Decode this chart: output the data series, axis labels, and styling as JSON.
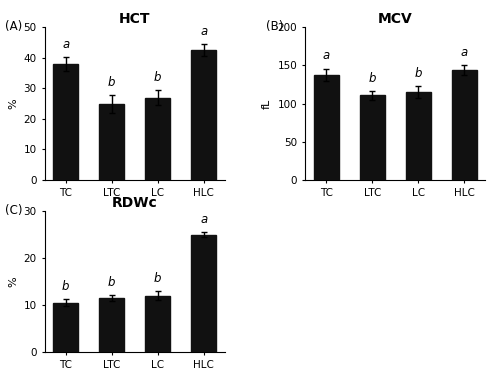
{
  "categories": [
    "TC",
    "LTC",
    "LC",
    "HLC"
  ],
  "hct": {
    "title": "HCT",
    "ylabel": "%",
    "ylim": [
      0,
      50
    ],
    "yticks": [
      0,
      10,
      20,
      30,
      40,
      50
    ],
    "values": [
      38.0,
      24.8,
      27.0,
      42.5
    ],
    "errors": [
      2.2,
      3.0,
      2.5,
      2.0
    ],
    "letters": [
      "a",
      "b",
      "b",
      "a"
    ],
    "panel_label": "(A)"
  },
  "mcv": {
    "title": "MCV",
    "ylabel": "fL",
    "ylim": [
      0,
      200
    ],
    "yticks": [
      0,
      50,
      100,
      150,
      200
    ],
    "values": [
      138.0,
      111.0,
      115.0,
      144.0
    ],
    "errors": [
      8.0,
      6.0,
      7.5,
      7.0
    ],
    "letters": [
      "a",
      "b",
      "b",
      "a"
    ],
    "panel_label": "(B)"
  },
  "rdwc": {
    "title": "RDWc",
    "ylabel": "%",
    "ylim": [
      0,
      30
    ],
    "yticks": [
      0,
      10,
      20,
      30
    ],
    "values": [
      10.5,
      11.5,
      12.0,
      25.0
    ],
    "errors": [
      0.8,
      0.7,
      1.0,
      0.6
    ],
    "letters": [
      "b",
      "b",
      "b",
      "a"
    ],
    "panel_label": "(C)"
  },
  "bar_color": "#111111",
  "bar_width": 0.55,
  "title_fontsize": 10,
  "label_fontsize": 8,
  "tick_fontsize": 7.5,
  "letter_fontsize": 8.5,
  "panel_label_fontsize": 8.5
}
